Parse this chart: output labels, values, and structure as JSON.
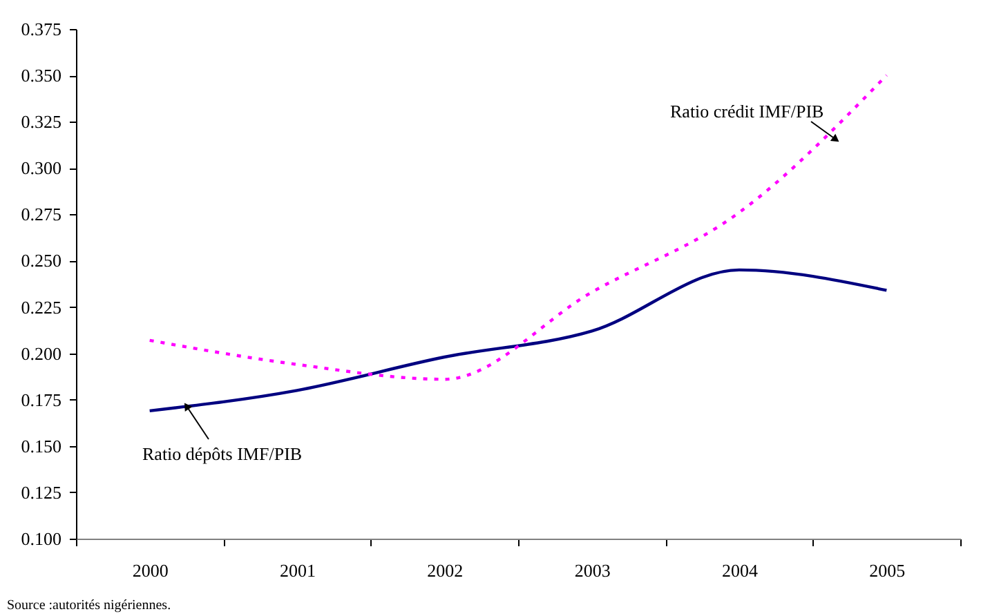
{
  "chart_data": {
    "type": "line",
    "categories": [
      "2000",
      "2001",
      "2002",
      "2003",
      "2004",
      "2005"
    ],
    "series": [
      {
        "name": "Ratio dépôts IMF/PIB",
        "color": "#000080",
        "values": [
          0.169,
          0.18,
          0.198,
          0.212,
          0.245,
          0.234
        ],
        "line_style": "solid"
      },
      {
        "name": "Ratio crédit IMF/PIB",
        "color": "#ff00ff",
        "values": [
          0.207,
          0.194,
          0.186,
          0.233,
          0.276,
          0.35
        ],
        "line_style": "dotted"
      }
    ],
    "ylim": [
      0.1,
      0.375
    ],
    "yticks": [
      {
        "value": 0.1,
        "label": "0.100"
      },
      0.125,
      {
        "value": 0.15,
        "label": "0.150"
      },
      0.175,
      {
        "value": 0.2,
        "label": "0.200"
      },
      0.225,
      {
        "value": 0.25,
        "label": "0.250"
      },
      0.275,
      {
        "value": 0.3,
        "label": "0.300"
      },
      0.325,
      {
        "value": 0.35,
        "label": "0.350"
      },
      0.375
    ],
    "grid": false,
    "legend": false,
    "marker": "none",
    "annotations": [
      "Source :autorités nigériennes."
    ]
  }
}
